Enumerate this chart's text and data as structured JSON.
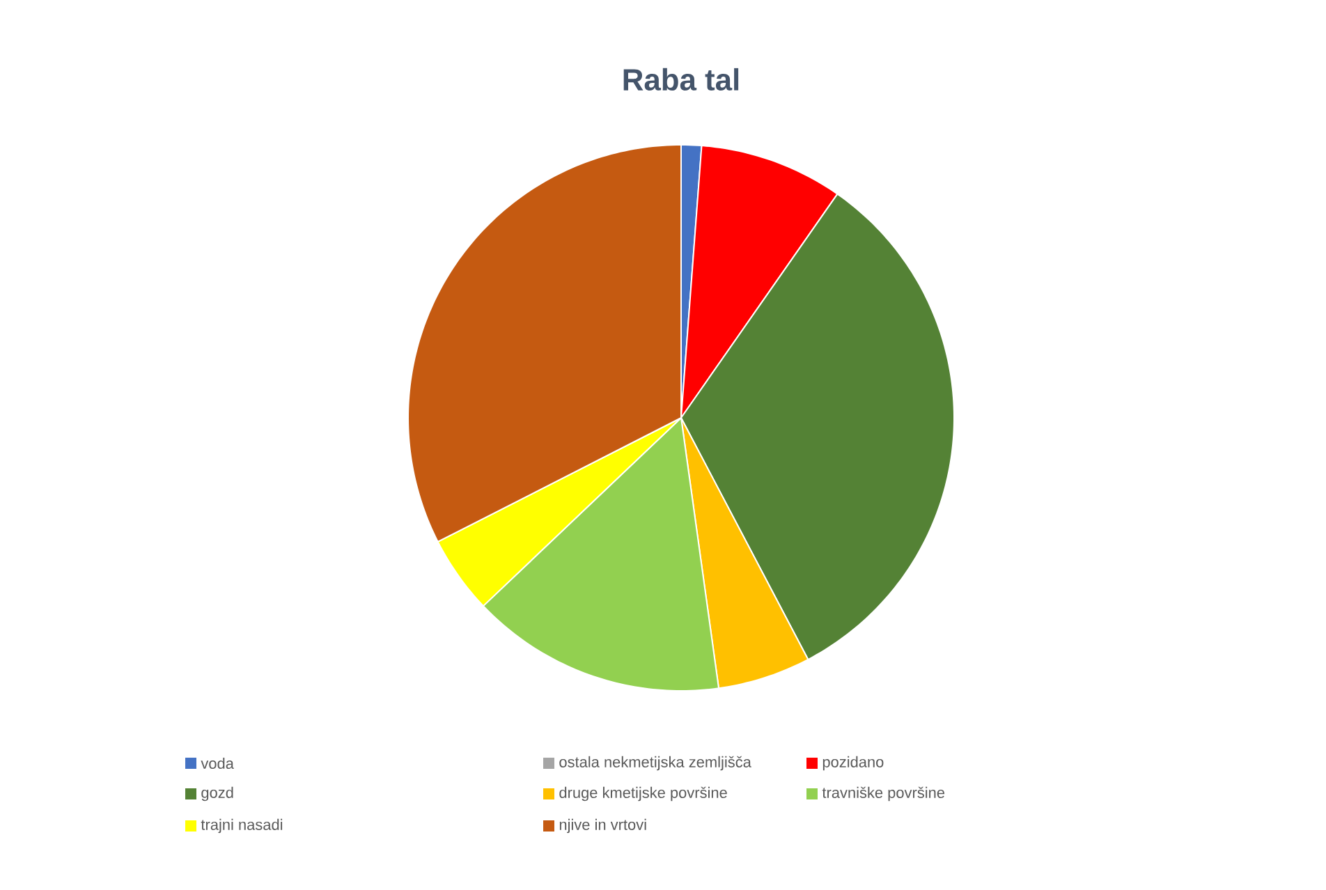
{
  "chart_data": {
    "type": "pie",
    "title": "Raba tal",
    "categories": [
      "voda",
      "ostala nekmetijska zemljišča",
      "pozidano",
      "gozd",
      "druge kmetijske površine",
      "travniške površine",
      "trajni nasadi",
      "njive in vrtovi"
    ],
    "values": [
      1.2,
      0,
      8.5,
      32.6,
      5.5,
      15.1,
      4.6,
      32.5
    ],
    "colors": [
      "#4472c4",
      "#a5a5a5",
      "#ff0000",
      "#548235",
      "#ffc000",
      "#92d050",
      "#ffff00",
      "#c55a11"
    ],
    "legend": "bottom"
  }
}
